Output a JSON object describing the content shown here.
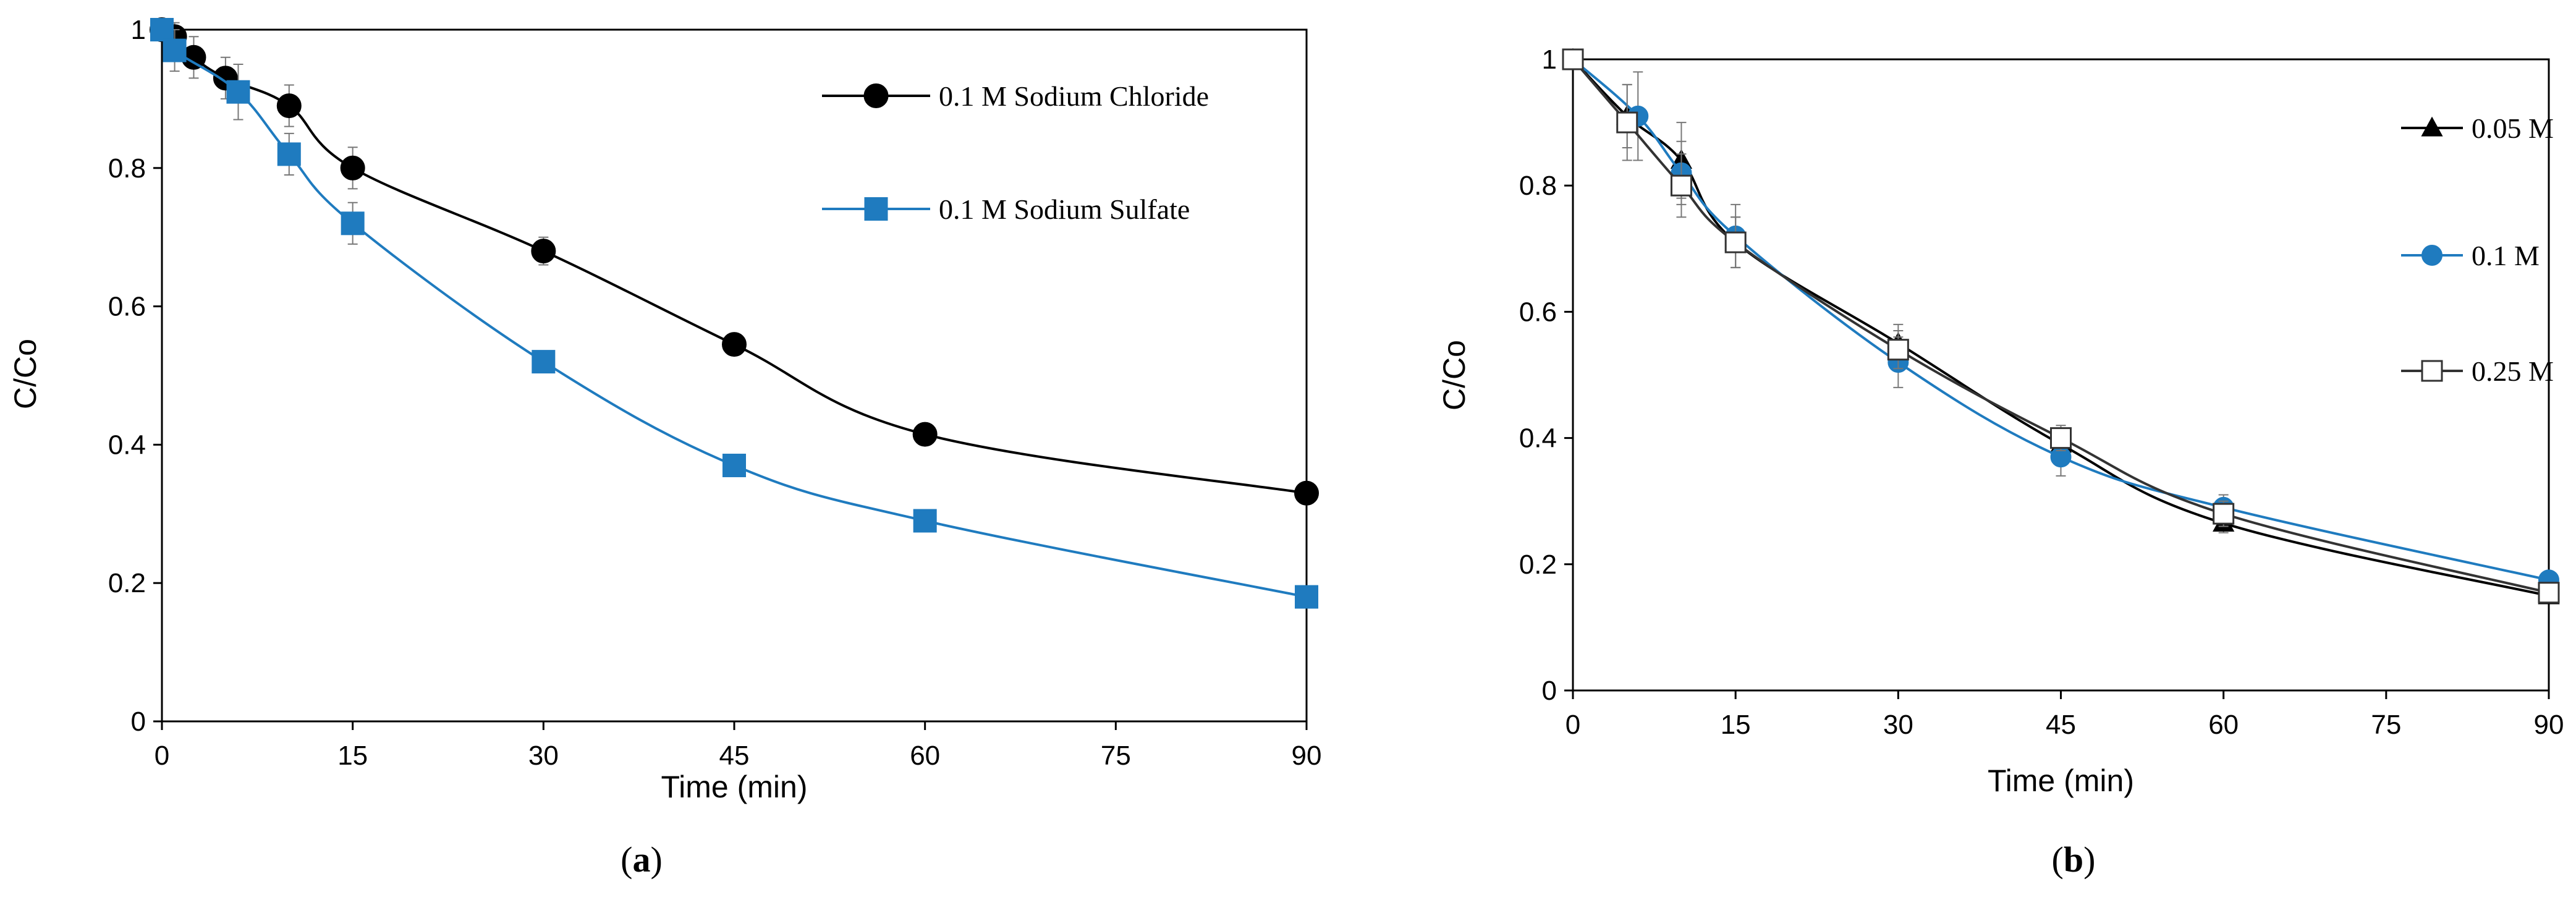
{
  "chart_data": [
    {
      "type": "line",
      "panel_label": "a",
      "title": "",
      "xlabel": "Time (min)",
      "ylabel": "C/Co",
      "xlim": [
        0,
        90
      ],
      "ylim": [
        0,
        1
      ],
      "xticks": [
        "0",
        "15",
        "30",
        "45",
        "60",
        "75",
        "90"
      ],
      "yticks": [
        "0",
        "0.2",
        "0.4",
        "0.6",
        "0.8",
        "1"
      ],
      "grid": false,
      "legend_position": "top-right",
      "series": [
        {
          "name": "0.1 M Sodium Chloride",
          "color": "#000000",
          "marker": "circle-filled",
          "x": [
            0,
            1,
            2.5,
            5,
            10,
            15,
            30,
            45,
            60,
            90
          ],
          "y": [
            1.0,
            0.99,
            0.96,
            0.93,
            0.89,
            0.8,
            0.68,
            0.545,
            0.415,
            0.33
          ],
          "err": [
            0.01,
            0.02,
            0.03,
            0.03,
            0.03,
            0.03,
            0.02,
            0.015,
            0.01,
            0.01
          ]
        },
        {
          "name": "0.1 M Sodium Sulfate",
          "color": "#1f7bbf",
          "marker": "square-filled",
          "x": [
            0,
            1,
            6,
            10,
            15,
            30,
            45,
            60,
            90
          ],
          "y": [
            1.0,
            0.97,
            0.91,
            0.82,
            0.72,
            0.52,
            0.37,
            0.29,
            0.18
          ],
          "err": [
            0.01,
            0.03,
            0.04,
            0.03,
            0.03,
            0.015,
            0.01,
            0.01,
            0.01
          ]
        }
      ]
    },
    {
      "type": "line",
      "panel_label": "b",
      "title": "",
      "xlabel": "Time (min)",
      "ylabel": "C/Co",
      "xlim": [
        0,
        90
      ],
      "ylim": [
        0,
        1
      ],
      "xticks": [
        "0",
        "15",
        "30",
        "45",
        "60",
        "75",
        "90"
      ],
      "yticks": [
        "0",
        "0.2",
        "0.4",
        "0.6",
        "0.8",
        "1"
      ],
      "grid": false,
      "legend_position": "top-right",
      "series": [
        {
          "name": "0.05 M",
          "color": "#000000",
          "marker": "triangle-filled",
          "x": [
            0,
            5,
            10,
            15,
            30,
            45,
            60,
            90
          ],
          "y": [
            1.0,
            0.91,
            0.84,
            0.71,
            0.55,
            0.39,
            0.265,
            0.15
          ],
          "err": [
            0.01,
            0.05,
            0.06,
            0.04,
            0.03,
            0.02,
            0.015,
            0.01
          ]
        },
        {
          "name": "0.1 M",
          "color": "#1f7bbf",
          "marker": "circle-filled",
          "x": [
            0,
            6,
            10,
            15,
            30,
            45,
            60,
            90
          ],
          "y": [
            1.0,
            0.91,
            0.82,
            0.72,
            0.52,
            0.37,
            0.29,
            0.175
          ],
          "err": [
            0.01,
            0.07,
            0.05,
            0.05,
            0.04,
            0.03,
            0.02,
            0.01
          ]
        },
        {
          "name": "0.25 M",
          "color": "#333333",
          "marker": "square-open",
          "x": [
            0,
            5,
            10,
            15,
            30,
            45,
            60,
            90
          ],
          "y": [
            1.0,
            0.9,
            0.8,
            0.71,
            0.54,
            0.4,
            0.28,
            0.155
          ],
          "err": [
            0.01,
            0.06,
            0.05,
            0.04,
            0.03,
            0.02,
            0.02,
            0.01
          ]
        }
      ]
    }
  ]
}
